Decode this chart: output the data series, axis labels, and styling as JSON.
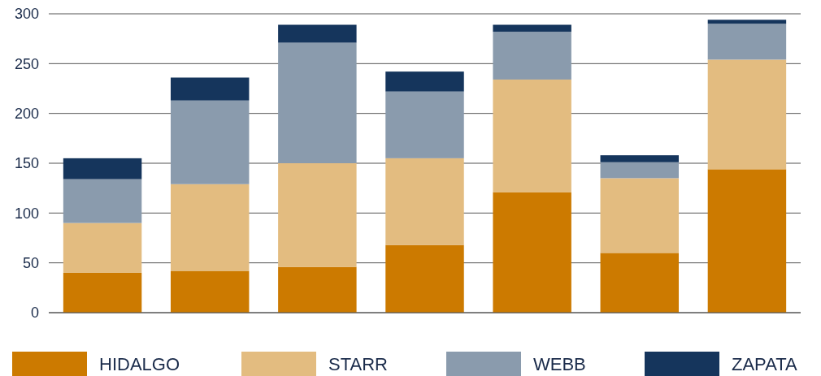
{
  "chart_data": {
    "type": "bar",
    "stacked": true,
    "categories": [
      null,
      null,
      null,
      null,
      null,
      null,
      null
    ],
    "series": [
      {
        "name": "HIDALGO",
        "color": "#cc7a00",
        "values": [
          40,
          42,
          46,
          68,
          121,
          60,
          144
        ]
      },
      {
        "name": "STARR",
        "color": "#e3bc80",
        "values": [
          50,
          87,
          104,
          87,
          113,
          75,
          110
        ]
      },
      {
        "name": "WEBB",
        "color": "#8a9bad",
        "values": [
          44,
          84,
          121,
          67,
          48,
          16,
          36
        ]
      },
      {
        "name": "ZAPATA",
        "color": "#15355c",
        "values": [
          21,
          23,
          18,
          20,
          7,
          7,
          4
        ]
      }
    ],
    "ylim": [
      0,
      300
    ],
    "yticks": [
      0,
      50,
      100,
      150,
      200,
      250,
      300
    ],
    "grid": "y",
    "legend": "bottom"
  }
}
